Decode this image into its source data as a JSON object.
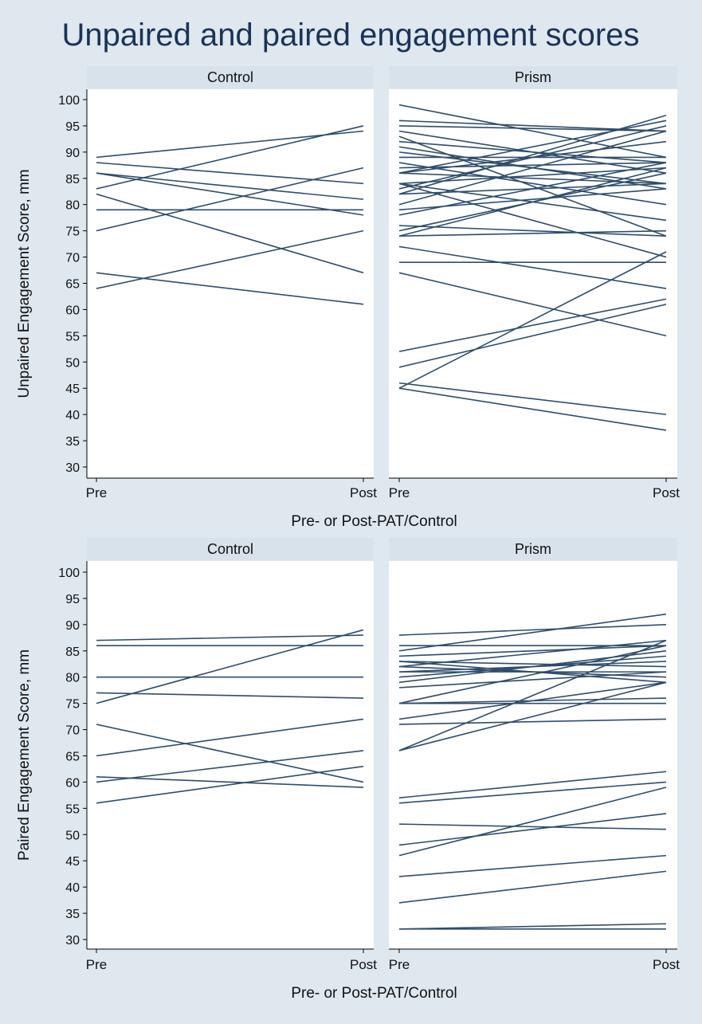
{
  "title": "Unpaired and paired engagement scores",
  "colors": {
    "background": "#dfe8ef",
    "plot_background": "#ffffff",
    "strip_background": "#d8e2ea",
    "line": "#2f4d6c",
    "title": "#1a3358",
    "text": "#111111"
  },
  "chart_data": [
    {
      "type": "line",
      "ylabel": "Unpaired Engagement Score, mm",
      "xlabel": "Pre- or Post-PAT/Control",
      "x": [
        "Pre",
        "Post"
      ],
      "ylim": [
        30,
        100
      ],
      "yticks": [
        30,
        35,
        40,
        45,
        50,
        55,
        60,
        65,
        70,
        75,
        80,
        85,
        90,
        95,
        100
      ],
      "grid": false,
      "panels": [
        {
          "label": "Control",
          "pairs": [
            [
              89,
              94
            ],
            [
              88,
              84
            ],
            [
              86,
              81
            ],
            [
              86,
              78
            ],
            [
              83,
              95
            ],
            [
              82,
              67
            ],
            [
              79,
              79
            ],
            [
              75,
              87
            ],
            [
              67,
              61
            ],
            [
              64,
              75
            ]
          ]
        },
        {
          "label": "Prism",
          "pairs": [
            [
              99,
              89
            ],
            [
              96,
              94
            ],
            [
              95,
              94
            ],
            [
              94,
              86
            ],
            [
              93,
              74
            ],
            [
              92,
              88
            ],
            [
              91,
              83
            ],
            [
              90,
              84
            ],
            [
              89,
              89
            ],
            [
              88,
              80
            ],
            [
              87,
              88
            ],
            [
              86,
              96
            ],
            [
              86,
              92
            ],
            [
              86,
              84
            ],
            [
              84,
              77
            ],
            [
              84,
              70
            ],
            [
              84,
              87
            ],
            [
              83,
              95
            ],
            [
              82,
              97
            ],
            [
              82,
              84
            ],
            [
              80,
              94
            ],
            [
              79,
              83
            ],
            [
              78,
              88
            ],
            [
              76,
              74
            ],
            [
              75,
              86
            ],
            [
              74,
              87
            ],
            [
              74,
              75
            ],
            [
              72,
              64
            ],
            [
              69,
              69
            ],
            [
              67,
              55
            ],
            [
              52,
              62
            ],
            [
              49,
              61
            ],
            [
              46,
              40
            ],
            [
              45,
              71
            ],
            [
              45,
              37
            ]
          ]
        }
      ]
    },
    {
      "type": "line",
      "ylabel": "Paired Engagement Score, mm",
      "xlabel": "Pre- or Post-PAT/Control",
      "x": [
        "Pre",
        "Post"
      ],
      "ylim": [
        30,
        100
      ],
      "yticks": [
        30,
        35,
        40,
        45,
        50,
        55,
        60,
        65,
        70,
        75,
        80,
        85,
        90,
        95,
        100
      ],
      "grid": false,
      "panels": [
        {
          "label": "Control",
          "pairs": [
            [
              87,
              88
            ],
            [
              86,
              86
            ],
            [
              80,
              80
            ],
            [
              77,
              76
            ],
            [
              75,
              89
            ],
            [
              71,
              60
            ],
            [
              65,
              72
            ],
            [
              61,
              59
            ],
            [
              60,
              66
            ],
            [
              56,
              63
            ]
          ]
        },
        {
          "label": "Prism",
          "pairs": [
            [
              88,
              90
            ],
            [
              85,
              92
            ],
            [
              86,
              86
            ],
            [
              84,
              86
            ],
            [
              83,
              82
            ],
            [
              83,
              79
            ],
            [
              82,
              87
            ],
            [
              82,
              80
            ],
            [
              81,
              83
            ],
            [
              81,
              81
            ],
            [
              80,
              84
            ],
            [
              79,
              85
            ],
            [
              78,
              81
            ],
            [
              75,
              86
            ],
            [
              75,
              76
            ],
            [
              75,
              75
            ],
            [
              72,
              79
            ],
            [
              71,
              72
            ],
            [
              66,
              87
            ],
            [
              66,
              79
            ],
            [
              57,
              62
            ],
            [
              56,
              60
            ],
            [
              52,
              51
            ],
            [
              48,
              54
            ],
            [
              46,
              59
            ],
            [
              42,
              46
            ],
            [
              37,
              43
            ],
            [
              32,
              33
            ],
            [
              32,
              32
            ]
          ]
        }
      ]
    }
  ]
}
